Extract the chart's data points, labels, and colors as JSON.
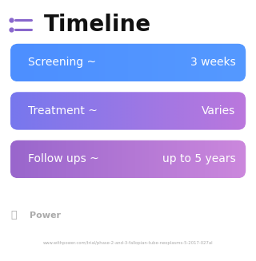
{
  "title": "Timeline",
  "title_fontsize": 20,
  "title_color": "#111111",
  "title_icon_color": "#8866cc",
  "background_color": "#ffffff",
  "rows": [
    {
      "label": "Screening ~",
      "value": "3 weeks",
      "color_left": "#4d8fff",
      "color_right": "#5599ff"
    },
    {
      "label": "Treatment ~",
      "value": "Varies",
      "color_left": "#7777ee",
      "color_right": "#bb77dd"
    },
    {
      "label": "Follow ups ~",
      "value": "up to 5 years",
      "color_left": "#9966cc",
      "color_right": "#cc88dd"
    }
  ],
  "footer_logo_text": "Power",
  "footer_url": "www.withpower.com/trial/phase-2-and-3-fallopian-tube-neoplasms-5-2017-027al",
  "footer_color": "#aaaaaa",
  "label_fontsize": 10,
  "value_fontsize": 10,
  "text_color": "#ffffff"
}
